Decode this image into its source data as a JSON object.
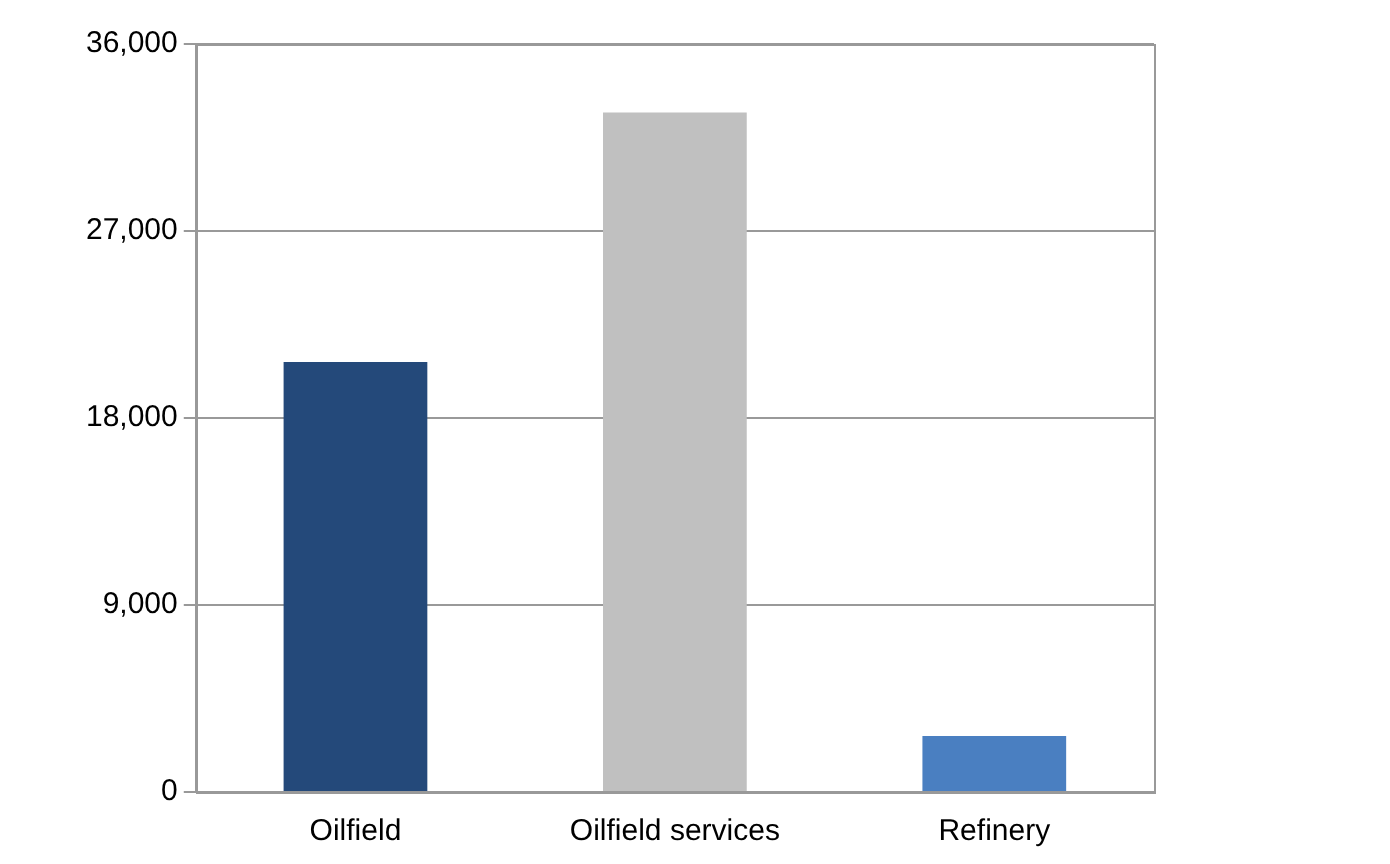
{
  "chart_data": {
    "type": "bar",
    "categories": [
      "Oilfield",
      "Oilfield services",
      "Refinery"
    ],
    "values": [
      20700,
      32700,
      2700
    ],
    "colors": [
      "#24497a",
      "#c0c0c0",
      "#4a7fc1"
    ],
    "ylim": [
      0,
      36000
    ],
    "yticks": [
      0,
      {
        "value": 9000,
        "label": "9,000"
      },
      {
        "value": 18000,
        "label": "18,000"
      },
      {
        "value": 27000,
        "label": "27,000"
      },
      {
        "value": 36000,
        "label": "36,000"
      }
    ],
    "grid": "y",
    "legend": false
  }
}
